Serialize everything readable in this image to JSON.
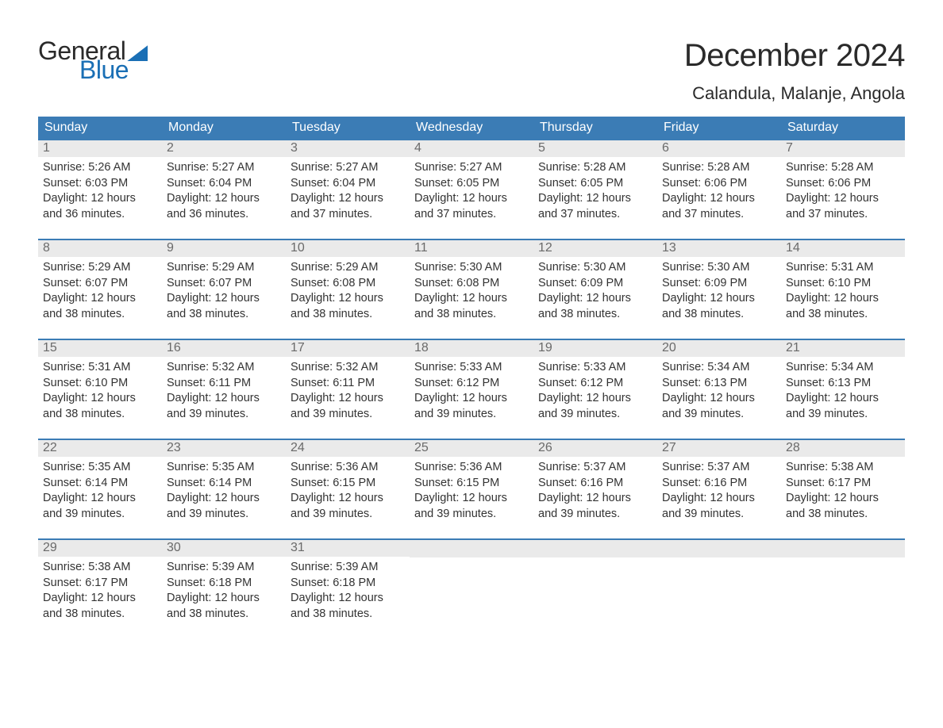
{
  "brand": {
    "general": "General",
    "blue": "Blue"
  },
  "header": {
    "month_title": "December 2024",
    "location": "Calandula, Malanje, Angola"
  },
  "colors": {
    "brand_blue": "#1a6fb5",
    "header_bg": "#3b7cb5",
    "day_number_bg": "#eaeaea",
    "day_number_fg": "#6a6a6a",
    "body_text": "#333333",
    "background": "#ffffff",
    "week_border": "#3b7cb5"
  },
  "weekdays": [
    "Sunday",
    "Monday",
    "Tuesday",
    "Wednesday",
    "Thursday",
    "Friday",
    "Saturday"
  ],
  "weeks": [
    [
      {
        "num": "1",
        "sunrise": "Sunrise: 5:26 AM",
        "sunset": "Sunset: 6:03 PM",
        "daylight1": "Daylight: 12 hours",
        "daylight2": "and 36 minutes."
      },
      {
        "num": "2",
        "sunrise": "Sunrise: 5:27 AM",
        "sunset": "Sunset: 6:04 PM",
        "daylight1": "Daylight: 12 hours",
        "daylight2": "and 36 minutes."
      },
      {
        "num": "3",
        "sunrise": "Sunrise: 5:27 AM",
        "sunset": "Sunset: 6:04 PM",
        "daylight1": "Daylight: 12 hours",
        "daylight2": "and 37 minutes."
      },
      {
        "num": "4",
        "sunrise": "Sunrise: 5:27 AM",
        "sunset": "Sunset: 6:05 PM",
        "daylight1": "Daylight: 12 hours",
        "daylight2": "and 37 minutes."
      },
      {
        "num": "5",
        "sunrise": "Sunrise: 5:28 AM",
        "sunset": "Sunset: 6:05 PM",
        "daylight1": "Daylight: 12 hours",
        "daylight2": "and 37 minutes."
      },
      {
        "num": "6",
        "sunrise": "Sunrise: 5:28 AM",
        "sunset": "Sunset: 6:06 PM",
        "daylight1": "Daylight: 12 hours",
        "daylight2": "and 37 minutes."
      },
      {
        "num": "7",
        "sunrise": "Sunrise: 5:28 AM",
        "sunset": "Sunset: 6:06 PM",
        "daylight1": "Daylight: 12 hours",
        "daylight2": "and 37 minutes."
      }
    ],
    [
      {
        "num": "8",
        "sunrise": "Sunrise: 5:29 AM",
        "sunset": "Sunset: 6:07 PM",
        "daylight1": "Daylight: 12 hours",
        "daylight2": "and 38 minutes."
      },
      {
        "num": "9",
        "sunrise": "Sunrise: 5:29 AM",
        "sunset": "Sunset: 6:07 PM",
        "daylight1": "Daylight: 12 hours",
        "daylight2": "and 38 minutes."
      },
      {
        "num": "10",
        "sunrise": "Sunrise: 5:29 AM",
        "sunset": "Sunset: 6:08 PM",
        "daylight1": "Daylight: 12 hours",
        "daylight2": "and 38 minutes."
      },
      {
        "num": "11",
        "sunrise": "Sunrise: 5:30 AM",
        "sunset": "Sunset: 6:08 PM",
        "daylight1": "Daylight: 12 hours",
        "daylight2": "and 38 minutes."
      },
      {
        "num": "12",
        "sunrise": "Sunrise: 5:30 AM",
        "sunset": "Sunset: 6:09 PM",
        "daylight1": "Daylight: 12 hours",
        "daylight2": "and 38 minutes."
      },
      {
        "num": "13",
        "sunrise": "Sunrise: 5:30 AM",
        "sunset": "Sunset: 6:09 PM",
        "daylight1": "Daylight: 12 hours",
        "daylight2": "and 38 minutes."
      },
      {
        "num": "14",
        "sunrise": "Sunrise: 5:31 AM",
        "sunset": "Sunset: 6:10 PM",
        "daylight1": "Daylight: 12 hours",
        "daylight2": "and 38 minutes."
      }
    ],
    [
      {
        "num": "15",
        "sunrise": "Sunrise: 5:31 AM",
        "sunset": "Sunset: 6:10 PM",
        "daylight1": "Daylight: 12 hours",
        "daylight2": "and 38 minutes."
      },
      {
        "num": "16",
        "sunrise": "Sunrise: 5:32 AM",
        "sunset": "Sunset: 6:11 PM",
        "daylight1": "Daylight: 12 hours",
        "daylight2": "and 39 minutes."
      },
      {
        "num": "17",
        "sunrise": "Sunrise: 5:32 AM",
        "sunset": "Sunset: 6:11 PM",
        "daylight1": "Daylight: 12 hours",
        "daylight2": "and 39 minutes."
      },
      {
        "num": "18",
        "sunrise": "Sunrise: 5:33 AM",
        "sunset": "Sunset: 6:12 PM",
        "daylight1": "Daylight: 12 hours",
        "daylight2": "and 39 minutes."
      },
      {
        "num": "19",
        "sunrise": "Sunrise: 5:33 AM",
        "sunset": "Sunset: 6:12 PM",
        "daylight1": "Daylight: 12 hours",
        "daylight2": "and 39 minutes."
      },
      {
        "num": "20",
        "sunrise": "Sunrise: 5:34 AM",
        "sunset": "Sunset: 6:13 PM",
        "daylight1": "Daylight: 12 hours",
        "daylight2": "and 39 minutes."
      },
      {
        "num": "21",
        "sunrise": "Sunrise: 5:34 AM",
        "sunset": "Sunset: 6:13 PM",
        "daylight1": "Daylight: 12 hours",
        "daylight2": "and 39 minutes."
      }
    ],
    [
      {
        "num": "22",
        "sunrise": "Sunrise: 5:35 AM",
        "sunset": "Sunset: 6:14 PM",
        "daylight1": "Daylight: 12 hours",
        "daylight2": "and 39 minutes."
      },
      {
        "num": "23",
        "sunrise": "Sunrise: 5:35 AM",
        "sunset": "Sunset: 6:14 PM",
        "daylight1": "Daylight: 12 hours",
        "daylight2": "and 39 minutes."
      },
      {
        "num": "24",
        "sunrise": "Sunrise: 5:36 AM",
        "sunset": "Sunset: 6:15 PM",
        "daylight1": "Daylight: 12 hours",
        "daylight2": "and 39 minutes."
      },
      {
        "num": "25",
        "sunrise": "Sunrise: 5:36 AM",
        "sunset": "Sunset: 6:15 PM",
        "daylight1": "Daylight: 12 hours",
        "daylight2": "and 39 minutes."
      },
      {
        "num": "26",
        "sunrise": "Sunrise: 5:37 AM",
        "sunset": "Sunset: 6:16 PM",
        "daylight1": "Daylight: 12 hours",
        "daylight2": "and 39 minutes."
      },
      {
        "num": "27",
        "sunrise": "Sunrise: 5:37 AM",
        "sunset": "Sunset: 6:16 PM",
        "daylight1": "Daylight: 12 hours",
        "daylight2": "and 39 minutes."
      },
      {
        "num": "28",
        "sunrise": "Sunrise: 5:38 AM",
        "sunset": "Sunset: 6:17 PM",
        "daylight1": "Daylight: 12 hours",
        "daylight2": "and 38 minutes."
      }
    ],
    [
      {
        "num": "29",
        "sunrise": "Sunrise: 5:38 AM",
        "sunset": "Sunset: 6:17 PM",
        "daylight1": "Daylight: 12 hours",
        "daylight2": "and 38 minutes."
      },
      {
        "num": "30",
        "sunrise": "Sunrise: 5:39 AM",
        "sunset": "Sunset: 6:18 PM",
        "daylight1": "Daylight: 12 hours",
        "daylight2": "and 38 minutes."
      },
      {
        "num": "31",
        "sunrise": "Sunrise: 5:39 AM",
        "sunset": "Sunset: 6:18 PM",
        "daylight1": "Daylight: 12 hours",
        "daylight2": "and 38 minutes."
      },
      {
        "empty": true
      },
      {
        "empty": true
      },
      {
        "empty": true
      },
      {
        "empty": true
      }
    ]
  ]
}
